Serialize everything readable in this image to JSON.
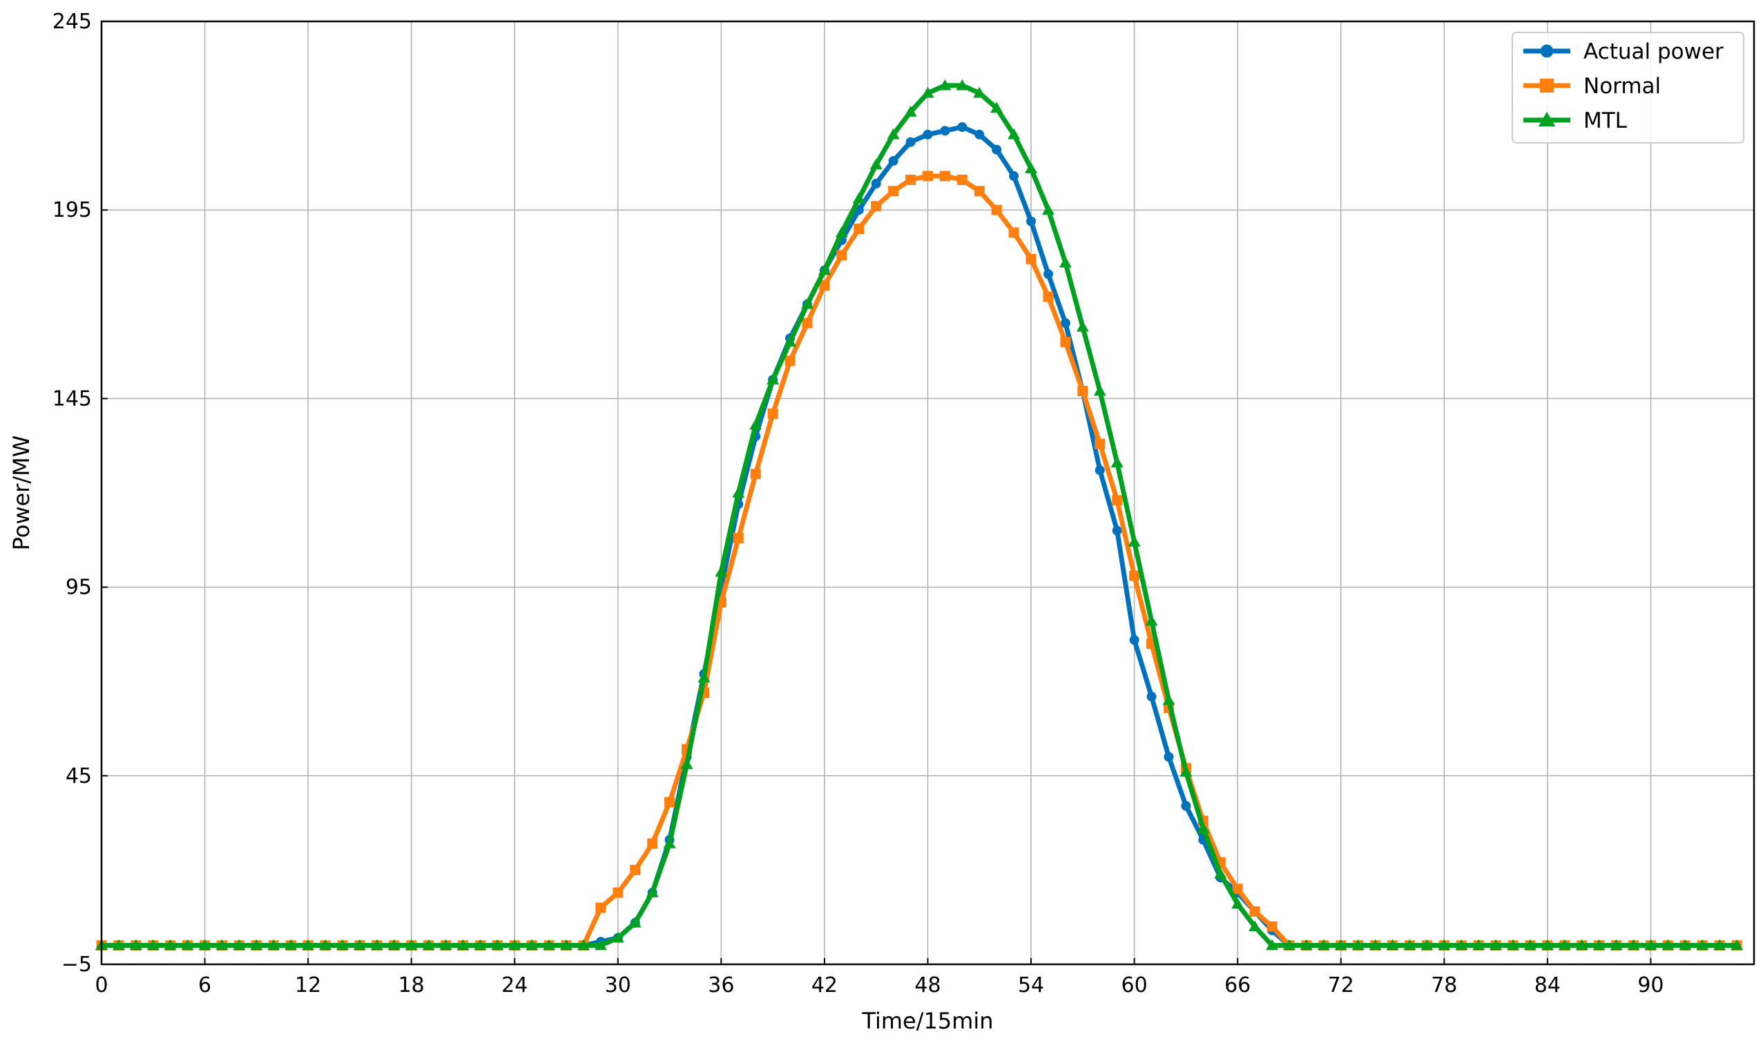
{
  "chart_data": {
    "type": "line",
    "title": "",
    "xlabel": "Time/15min",
    "ylabel": "Power/MW",
    "xlim": [
      0,
      96
    ],
    "ylim": [
      -5,
      245
    ],
    "xticks": [
      0,
      6,
      12,
      18,
      24,
      30,
      36,
      42,
      48,
      54,
      60,
      66,
      72,
      78,
      84,
      90
    ],
    "yticks": [
      -5,
      45,
      95,
      145,
      195,
      245
    ],
    "xtick_labels": [
      "0",
      "6",
      "12",
      "18",
      "24",
      "30",
      "36",
      "42",
      "48",
      "54",
      "60",
      "66",
      "72",
      "78",
      "84",
      "90"
    ],
    "ytick_labels": [
      "−5",
      "45",
      "95",
      "145",
      "195",
      "245"
    ],
    "grid": true,
    "legend_position": "top-right",
    "x": [
      0,
      1,
      2,
      3,
      4,
      5,
      6,
      7,
      8,
      9,
      10,
      11,
      12,
      13,
      14,
      15,
      16,
      17,
      18,
      19,
      20,
      21,
      22,
      23,
      24,
      25,
      26,
      27,
      28,
      29,
      30,
      31,
      32,
      33,
      34,
      35,
      36,
      37,
      38,
      39,
      40,
      41,
      42,
      43,
      44,
      45,
      46,
      47,
      48,
      49,
      50,
      51,
      52,
      53,
      54,
      55,
      56,
      57,
      58,
      59,
      60,
      61,
      62,
      63,
      64,
      65,
      66,
      67,
      68,
      69,
      70,
      71,
      72,
      73,
      74,
      75,
      76,
      77,
      78,
      79,
      80,
      81,
      82,
      83,
      84,
      85,
      86,
      87,
      88,
      89,
      90,
      91,
      92,
      93,
      94,
      95
    ],
    "series": [
      {
        "name": "Actual power",
        "color": "#0072BD",
        "marker": "circle",
        "values": [
          0,
          0,
          0,
          0,
          0,
          0,
          0,
          0,
          0,
          0,
          0,
          0,
          0,
          0,
          0,
          0,
          0,
          0,
          0,
          0,
          0,
          0,
          0,
          0,
          0,
          0,
          0,
          0,
          0,
          1,
          2,
          6,
          14,
          28,
          50,
          72,
          95,
          117,
          135,
          150,
          161,
          170,
          179,
          187,
          195,
          202,
          208,
          213,
          215,
          216,
          217,
          215,
          211,
          204,
          192,
          178,
          165,
          147,
          126,
          110,
          81,
          66,
          50,
          37,
          28,
          18,
          14,
          9,
          4,
          0,
          0,
          0,
          0,
          0,
          0,
          0,
          0,
          0,
          0,
          0,
          0,
          0,
          0,
          0,
          0,
          0,
          0,
          0,
          0,
          0,
          0,
          0,
          0,
          0,
          0,
          0
        ]
      },
      {
        "name": "Normal",
        "color": "#FF7F0E",
        "marker": "square",
        "values": [
          0,
          0,
          0,
          0,
          0,
          0,
          0,
          0,
          0,
          0,
          0,
          0,
          0,
          0,
          0,
          0,
          0,
          0,
          0,
          0,
          0,
          0,
          0,
          0,
          0,
          0,
          0,
          0,
          0,
          10,
          14,
          20,
          27,
          38,
          52,
          67,
          91,
          108,
          125,
          141,
          155,
          165,
          175,
          183,
          190,
          196,
          200,
          203,
          204,
          204,
          203,
          200,
          195,
          189,
          182,
          172,
          160,
          147,
          133,
          118,
          98,
          80,
          63,
          47,
          33,
          22,
          15,
          9,
          5,
          0,
          0,
          0,
          0,
          0,
          0,
          0,
          0,
          0,
          0,
          0,
          0,
          0,
          0,
          0,
          0,
          0,
          0,
          0,
          0,
          0,
          0,
          0,
          0,
          0,
          0,
          0
        ]
      },
      {
        "name": "MTL",
        "color": "#00A020",
        "marker": "triangle",
        "values": [
          0,
          0,
          0,
          0,
          0,
          0,
          0,
          0,
          0,
          0,
          0,
          0,
          0,
          0,
          0,
          0,
          0,
          0,
          0,
          0,
          0,
          0,
          0,
          0,
          0,
          0,
          0,
          0,
          0,
          0,
          2,
          6,
          14,
          27,
          48,
          71,
          99,
          120,
          138,
          150,
          160,
          170,
          179,
          189,
          198,
          207,
          215,
          221,
          226,
          228,
          228,
          226,
          222,
          215,
          206,
          195,
          181,
          164,
          147,
          128,
          107,
          86,
          65,
          46,
          31,
          19,
          11,
          5,
          0,
          0,
          0,
          0,
          0,
          0,
          0,
          0,
          0,
          0,
          0,
          0,
          0,
          0,
          0,
          0,
          0,
          0,
          0,
          0,
          0,
          0,
          0,
          0,
          0,
          0,
          0,
          0
        ]
      }
    ]
  }
}
